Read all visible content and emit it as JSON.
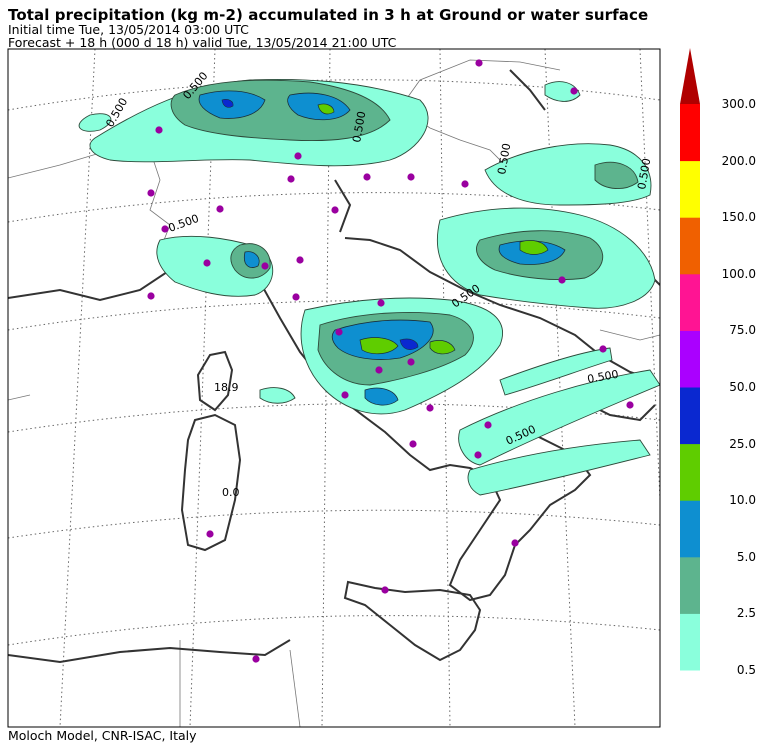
{
  "header": {
    "title": "Total precipitation (kg m-2) accumulated in   3 h at Ground or water surface",
    "initial_time": "Initial time  Tue, 13/05/2014  03:00 UTC",
    "forecast": "Forecast  +  18 h  (000 d 18 h)  valid Tue, 13/05/2014 21:00 UTC"
  },
  "footer": {
    "credit": "Moloch Model, CNR-ISAC, Italy"
  },
  "colorbar": {
    "levels": [
      {
        "label": "0.5",
        "color": "#8affdc"
      },
      {
        "label": "2.5",
        "color": "#5db48e"
      },
      {
        "label": "5.0",
        "color": "#0e8fd0"
      },
      {
        "label": "10.0",
        "color": "#5fcd00"
      },
      {
        "label": "25.0",
        "color": "#0a28d0"
      },
      {
        "label": "50.0",
        "color": "#aa00ff"
      },
      {
        "label": "75.0",
        "color": "#ff1493"
      },
      {
        "label": "100.0",
        "color": "#f06000"
      },
      {
        "label": "150.0",
        "color": "#ffff00"
      },
      {
        "label": "200.0",
        "color": "#ff0000"
      },
      {
        "label": "300.0",
        "color": "#b00000"
      }
    ]
  },
  "map_labels": {
    "l1": "0.500",
    "l2": "0.500",
    "l3": "0.500",
    "l4": "0.500",
    "l5": "0.500",
    "l6": "0.500",
    "l7": "0.500",
    "l8": "0.500",
    "l9": "0.500",
    "l10": "18.9",
    "l11": "0.0"
  }
}
